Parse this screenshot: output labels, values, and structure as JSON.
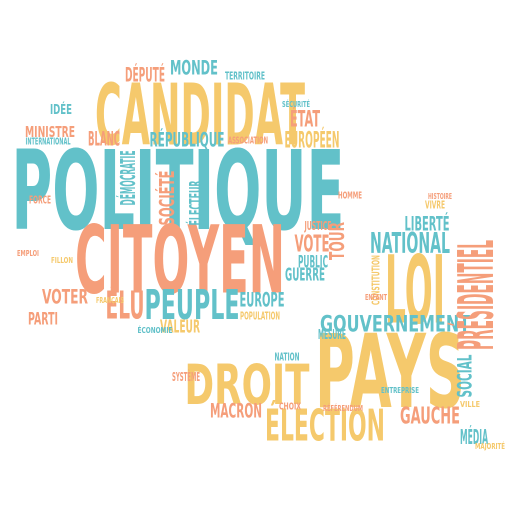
{
  "words": [
    "POLITIQUE",
    "CITOYEN",
    "CANDIDAT",
    "PAYS",
    "LOI",
    "DROIT",
    "ÉLECTION",
    "PEUPLE",
    "GOUVERNEMENT",
    "NATIONAL",
    "PRÉSIDENTIEL",
    "GAUCHE",
    "MACRON",
    "VOTE",
    "VOTER",
    "ÉLU",
    "EUROPE",
    "EUROPÉEN",
    "ÉTAT",
    "DÉPUTÉ",
    "MONDE",
    "IDÉE",
    "MINISTRE",
    "BLANC",
    "RÉPUBLIQUE",
    "LIBERTÉ",
    "PARTI",
    "SOCIAL",
    "MÉDIA",
    "DÉMOCRATIE",
    "SOCIÉTÉ",
    "ÉLECTEUR",
    "PUBLIC",
    "GUERRE",
    "TOUR",
    "VALEUR",
    "JUSTICE",
    "CONSTITUTION",
    "MESURE",
    "NATION",
    "SYSTÈME",
    "TERRITOIRE",
    "POPULATION",
    "VIVRE",
    "HISTOIRE",
    "ASSOCIATION",
    "INTERNATIONAL",
    "FORCE",
    "HOMME",
    "ENFANT",
    "FILLON",
    "CHOIX",
    "ÉCONOMIE",
    "FRANÇAIS",
    "SÉCURITÉ",
    "VILLE",
    "ENTREPRISE",
    "RÉFÉRENDUM",
    "EMPLOI",
    "MAJORITÉ"
  ]
}
